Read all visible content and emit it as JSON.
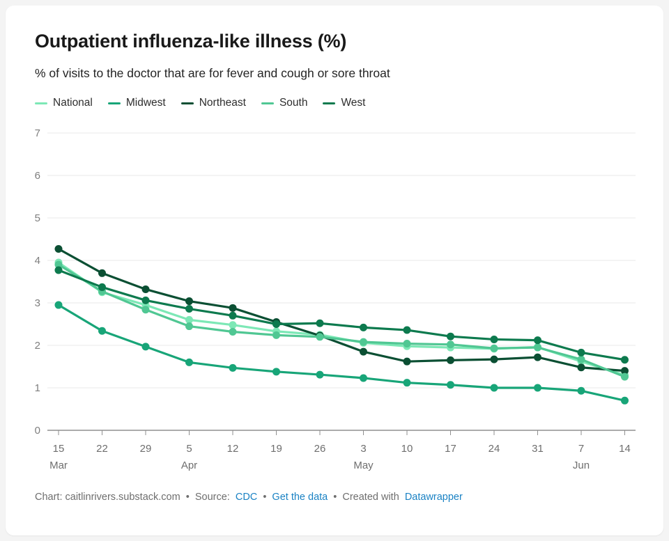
{
  "header": {
    "title": "Outpatient influenza-like illness (%)",
    "subtitle": "% of visits to the doctor that are for fever and cough or sore throat"
  },
  "chart_data": {
    "type": "line",
    "x_tick_labels": [
      "15",
      "22",
      "29",
      "5",
      "12",
      "19",
      "26",
      "3",
      "10",
      "17",
      "24",
      "31",
      "7",
      "14"
    ],
    "month_labels": [
      {
        "label": "Mar",
        "tick_index": 0
      },
      {
        "label": "Apr",
        "tick_index": 3
      },
      {
        "label": "May",
        "tick_index": 7
      },
      {
        "label": "Jun",
        "tick_index": 12
      }
    ],
    "ylim": [
      0,
      7
    ],
    "yticks": [
      0,
      1,
      2,
      3,
      4,
      5,
      6,
      7
    ],
    "grid": "horizontal",
    "legend_position": "top-left",
    "series": [
      {
        "name": "National",
        "color": "#7DE8B6",
        "values": [
          3.95,
          3.25,
          2.95,
          2.6,
          2.48,
          2.33,
          2.25,
          2.06,
          1.98,
          1.95,
          1.92,
          1.96,
          1.62,
          1.3
        ]
      },
      {
        "name": "Midwest",
        "color": "#18A578",
        "values": [
          2.95,
          2.34,
          1.97,
          1.6,
          1.47,
          1.38,
          1.31,
          1.23,
          1.12,
          1.07,
          1.0,
          1.0,
          0.93,
          0.7
        ]
      },
      {
        "name": "Northeast",
        "color": "#0B4F33",
        "values": [
          4.27,
          3.7,
          3.32,
          3.04,
          2.88,
          2.55,
          2.23,
          1.85,
          1.62,
          1.65,
          1.67,
          1.72,
          1.48,
          1.4
        ]
      },
      {
        "name": "South",
        "color": "#50C793",
        "values": [
          3.9,
          3.27,
          2.84,
          2.45,
          2.32,
          2.24,
          2.2,
          2.08,
          2.04,
          2.02,
          1.93,
          1.95,
          1.67,
          1.26
        ]
      },
      {
        "name": "West",
        "color": "#0D7A4E",
        "values": [
          3.77,
          3.37,
          3.06,
          2.86,
          2.7,
          2.5,
          2.52,
          2.42,
          2.36,
          2.21,
          2.14,
          2.12,
          1.83,
          1.66
        ]
      }
    ]
  },
  "footer": {
    "chart_credit": "Chart: caitlinrivers.substack.com",
    "sep": "•",
    "source_label": "Source:",
    "source_link": "CDC",
    "data_link": "Get the data",
    "created_label": "Created with",
    "tool_link": "Datawrapper",
    "link_color": "#1A82C4",
    "text_color": "#6e6e6e"
  }
}
